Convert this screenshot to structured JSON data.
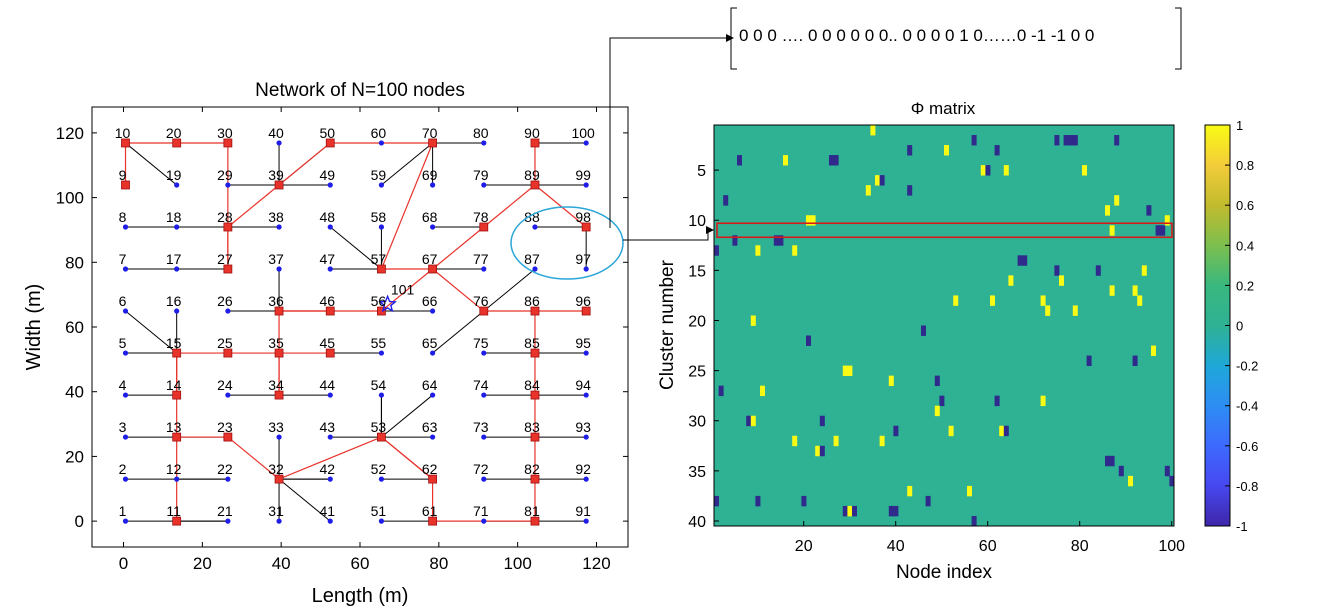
{
  "vector_text": "0 0 0 …. 0 0 0 0 0 0.. 0 0 0 0 1 0……0  -1 -1 0 0",
  "chart_data": [
    {
      "type": "scatter",
      "title": "Network of N=100 nodes",
      "xlabel": "Length (m)",
      "ylabel": "Width (m)",
      "xlim": [
        -8,
        128
      ],
      "ylim": [
        -8,
        128
      ],
      "xticks": [
        0,
        20,
        40,
        60,
        80,
        100,
        120
      ],
      "yticks": [
        0,
        20,
        40,
        60,
        80,
        100,
        120
      ],
      "grid": "none",
      "node_labels": [
        "1",
        "2",
        "3",
        "4",
        "5",
        "6",
        "7",
        "8",
        "9",
        "10",
        "11",
        "12",
        "13",
        "14",
        "15",
        "16",
        "17",
        "18",
        "19",
        "20",
        "21",
        "22",
        "23",
        "24",
        "25",
        "26",
        "27",
        "28",
        "29",
        "30",
        "31",
        "32",
        "33",
        "34",
        "35",
        "36",
        "37",
        "38",
        "39",
        "40",
        "41",
        "42",
        "43",
        "44",
        "45",
        "46",
        "47",
        "48",
        "49",
        "50",
        "51",
        "52",
        "53",
        "54",
        "55",
        "56",
        "57",
        "58",
        "59",
        "60",
        "61",
        "62",
        "63",
        "64",
        "65",
        "66",
        "67",
        "68",
        "69",
        "70",
        "71",
        "72",
        "73",
        "74",
        "75",
        "76",
        "77",
        "78",
        "79",
        "80",
        "81",
        "82",
        "83",
        "84",
        "85",
        "86",
        "87",
        "88",
        "89",
        "90",
        "91",
        "92",
        "93",
        "94",
        "95",
        "96",
        "97",
        "98",
        "99",
        "100"
      ],
      "sink": {
        "label": "101",
        "x": 67,
        "y": 67
      },
      "edges_black": [
        [
          1,
          11
        ],
        [
          11,
          21
        ],
        [
          2,
          12
        ],
        [
          12,
          22
        ],
        [
          3,
          13
        ],
        [
          4,
          14
        ],
        [
          5,
          15
        ],
        [
          6,
          15
        ],
        [
          7,
          27
        ],
        [
          17,
          27
        ],
        [
          8,
          28
        ],
        [
          18,
          28
        ],
        [
          29,
          39
        ],
        [
          9,
          10
        ],
        [
          21,
          11
        ],
        [
          31,
          32
        ],
        [
          32,
          41
        ],
        [
          32,
          42
        ],
        [
          33,
          32
        ],
        [
          43,
          53
        ],
        [
          51,
          61
        ],
        [
          52,
          62
        ],
        [
          53,
          64
        ],
        [
          53,
          54
        ],
        [
          55,
          45
        ],
        [
          65,
          76
        ],
        [
          66,
          56
        ],
        [
          71,
          81
        ],
        [
          72,
          82
        ],
        [
          73,
          83
        ],
        [
          74,
          84
        ],
        [
          75,
          85
        ],
        [
          91,
          81
        ],
        [
          92,
          82
        ],
        [
          93,
          83
        ],
        [
          94,
          84
        ],
        [
          95,
          85
        ],
        [
          86,
          96
        ],
        [
          87,
          76
        ],
        [
          88,
          98
        ],
        [
          97,
          98
        ],
        [
          99,
          89
        ],
        [
          100,
          90
        ],
        [
          24,
          34
        ],
        [
          25,
          35
        ],
        [
          26,
          36
        ],
        [
          37,
          36
        ],
        [
          38,
          28
        ],
        [
          40,
          39
        ],
        [
          44,
          34
        ],
        [
          47,
          57
        ],
        [
          48,
          57
        ],
        [
          49,
          39
        ],
        [
          58,
          57
        ],
        [
          59,
          70
        ],
        [
          60,
          50
        ],
        [
          63,
          53
        ],
        [
          68,
          78
        ],
        [
          69,
          70
        ],
        [
          77,
          67
        ],
        [
          79,
          89
        ],
        [
          80,
          70
        ],
        [
          16,
          15
        ],
        [
          19,
          10
        ],
        [
          20,
          30
        ],
        [
          22,
          12
        ],
        [
          23,
          13
        ],
        [
          42,
          32
        ],
        [
          46,
          56
        ],
        [
          50,
          39
        ],
        [
          54,
          53
        ],
        [
          56,
          66
        ],
        [
          85,
          75
        ]
      ],
      "edges_red": [
        [
          10,
          20
        ],
        [
          20,
          30
        ],
        [
          30,
          27
        ],
        [
          9,
          10
        ],
        [
          27,
          28
        ],
        [
          28,
          39
        ],
        [
          39,
          50
        ],
        [
          50,
          70
        ],
        [
          70,
          57
        ],
        [
          57,
          67
        ],
        [
          67,
          56
        ],
        [
          56,
          46
        ],
        [
          46,
          36
        ],
        [
          36,
          35
        ],
        [
          35,
          34
        ],
        [
          34,
          35
        ],
        [
          35,
          25
        ],
        [
          25,
          15
        ],
        [
          15,
          14
        ],
        [
          15,
          13
        ],
        [
          13,
          11
        ],
        [
          13,
          23
        ],
        [
          23,
          32
        ],
        [
          32,
          53
        ],
        [
          53,
          62
        ],
        [
          62,
          61
        ],
        [
          61,
          81
        ],
        [
          81,
          82
        ],
        [
          82,
          83
        ],
        [
          83,
          84
        ],
        [
          84,
          85
        ],
        [
          85,
          86
        ],
        [
          86,
          76
        ],
        [
          76,
          67
        ],
        [
          67,
          78
        ],
        [
          78,
          89
        ],
        [
          89,
          98
        ],
        [
          86,
          96
        ],
        [
          89,
          90
        ],
        [
          53,
          62
        ],
        [
          35,
          45
        ],
        [
          36,
          46
        ]
      ],
      "red_nodes": [
        9,
        10,
        11,
        13,
        14,
        15,
        20,
        23,
        25,
        27,
        28,
        30,
        32,
        34,
        35,
        36,
        39,
        45,
        46,
        50,
        53,
        56,
        57,
        61,
        62,
        67,
        70,
        76,
        78,
        81,
        82,
        83,
        84,
        85,
        86,
        89,
        90,
        96,
        98
      ]
    },
    {
      "type": "heatmap",
      "title": "Φ matrix",
      "xlabel": "Node index",
      "ylabel": "Cluster number",
      "xlim": [
        1,
        100
      ],
      "ylim": [
        1,
        40
      ],
      "xticks": [
        20,
        40,
        60,
        80,
        100
      ],
      "yticks": [
        5,
        10,
        15,
        20,
        25,
        30,
        35,
        40
      ],
      "colorbar_ticks": [
        "1",
        "0.8",
        "0.6",
        "0.4",
        "0.2",
        "0",
        "-0.2",
        "-0.4",
        "-0.6",
        "-0.8",
        "-1"
      ],
      "background_value": 0,
      "highlight_row": 11,
      "cells": [
        {
          "row": 1,
          "col": 35,
          "v": 1
        },
        {
          "row": 2,
          "col": 57,
          "v": -1
        },
        {
          "row": 2,
          "col": 78,
          "v": -1
        },
        {
          "row": 2,
          "col": 79,
          "v": -1
        },
        {
          "row": 2,
          "col": 77,
          "v": -1
        },
        {
          "row": 2,
          "col": 75,
          "v": -1
        },
        {
          "row": 2,
          "col": 88,
          "v": -1
        },
        {
          "row": 3,
          "col": 43,
          "v": -1
        },
        {
          "row": 3,
          "col": 51,
          "v": 1
        },
        {
          "row": 3,
          "col": 62,
          "v": -1
        },
        {
          "row": 4,
          "col": 6,
          "v": -1
        },
        {
          "row": 4,
          "col": 16,
          "v": 1
        },
        {
          "row": 4,
          "col": 26,
          "v": -1
        },
        {
          "row": 4,
          "col": 27,
          "v": -1
        },
        {
          "row": 5,
          "col": 59,
          "v": 1
        },
        {
          "row": 5,
          "col": 60,
          "v": -1
        },
        {
          "row": 5,
          "col": 64,
          "v": 1
        },
        {
          "row": 5,
          "col": 81,
          "v": 1
        },
        {
          "row": 6,
          "col": 36,
          "v": 1
        },
        {
          "row": 6,
          "col": 37,
          "v": -1
        },
        {
          "row": 7,
          "col": 34,
          "v": 1
        },
        {
          "row": 7,
          "col": 43,
          "v": -1
        },
        {
          "row": 8,
          "col": 3,
          "v": -1
        },
        {
          "row": 8,
          "col": 88,
          "v": 1
        },
        {
          "row": 9,
          "col": 86,
          "v": 1
        },
        {
          "row": 9,
          "col": 95,
          "v": -1
        },
        {
          "row": 10,
          "col": 21,
          "v": 1
        },
        {
          "row": 10,
          "col": 22,
          "v": 1
        },
        {
          "row": 10,
          "col": 99,
          "v": 1
        },
        {
          "row": 11,
          "col": 87,
          "v": 1
        },
        {
          "row": 11,
          "col": 97,
          "v": -1
        },
        {
          "row": 11,
          "col": 98,
          "v": -1
        },
        {
          "row": 12,
          "col": 5,
          "v": -1
        },
        {
          "row": 12,
          "col": 14,
          "v": -1
        },
        {
          "row": 12,
          "col": 15,
          "v": -1
        },
        {
          "row": 13,
          "col": 1,
          "v": -1
        },
        {
          "row": 13,
          "col": 10,
          "v": 1
        },
        {
          "row": 13,
          "col": 18,
          "v": 1
        },
        {
          "row": 14,
          "col": 67,
          "v": -1
        },
        {
          "row": 14,
          "col": 68,
          "v": -1
        },
        {
          "row": 15,
          "col": 75,
          "v": -1
        },
        {
          "row": 15,
          "col": 84,
          "v": -1
        },
        {
          "row": 15,
          "col": 94,
          "v": 1
        },
        {
          "row": 16,
          "col": 76,
          "v": 1
        },
        {
          "row": 16,
          "col": 65,
          "v": 1
        },
        {
          "row": 17,
          "col": 87,
          "v": 1
        },
        {
          "row": 17,
          "col": 92,
          "v": 1
        },
        {
          "row": 18,
          "col": 53,
          "v": 1
        },
        {
          "row": 18,
          "col": 61,
          "v": 1
        },
        {
          "row": 18,
          "col": 72,
          "v": 1
        },
        {
          "row": 18,
          "col": 93,
          "v": 1
        },
        {
          "row": 19,
          "col": 73,
          "v": 1
        },
        {
          "row": 19,
          "col": 79,
          "v": 1
        },
        {
          "row": 20,
          "col": 9,
          "v": 1
        },
        {
          "row": 21,
          "col": 46,
          "v": -1
        },
        {
          "row": 22,
          "col": 21,
          "v": -1
        },
        {
          "row": 23,
          "col": 96,
          "v": 1
        },
        {
          "row": 24,
          "col": 82,
          "v": -1
        },
        {
          "row": 24,
          "col": 92,
          "v": -1
        },
        {
          "row": 25,
          "col": 29,
          "v": 1
        },
        {
          "row": 25,
          "col": 30,
          "v": 1
        },
        {
          "row": 26,
          "col": 39,
          "v": 1
        },
        {
          "row": 26,
          "col": 49,
          "v": -1
        },
        {
          "row": 27,
          "col": 2,
          "v": -1
        },
        {
          "row": 27,
          "col": 11,
          "v": 1
        },
        {
          "row": 28,
          "col": 50,
          "v": -1
        },
        {
          "row": 28,
          "col": 62,
          "v": -1
        },
        {
          "row": 28,
          "col": 72,
          "v": 1
        },
        {
          "row": 29,
          "col": 49,
          "v": 1
        },
        {
          "row": 30,
          "col": 8,
          "v": -1
        },
        {
          "row": 30,
          "col": 9,
          "v": 1
        },
        {
          "row": 30,
          "col": 24,
          "v": -1
        },
        {
          "row": 31,
          "col": 40,
          "v": -1
        },
        {
          "row": 31,
          "col": 52,
          "v": 1
        },
        {
          "row": 31,
          "col": 63,
          "v": 1
        },
        {
          "row": 31,
          "col": 64,
          "v": -1
        },
        {
          "row": 32,
          "col": 18,
          "v": 1
        },
        {
          "row": 32,
          "col": 27,
          "v": 1
        },
        {
          "row": 32,
          "col": 37,
          "v": 1
        },
        {
          "row": 33,
          "col": 23,
          "v": 1
        },
        {
          "row": 33,
          "col": 24,
          "v": -1
        },
        {
          "row": 34,
          "col": 86,
          "v": -1
        },
        {
          "row": 34,
          "col": 87,
          "v": -1
        },
        {
          "row": 35,
          "col": 89,
          "v": -1
        },
        {
          "row": 35,
          "col": 99,
          "v": -1
        },
        {
          "row": 36,
          "col": 91,
          "v": 1
        },
        {
          "row": 36,
          "col": 100,
          "v": -1
        },
        {
          "row": 37,
          "col": 43,
          "v": 1
        },
        {
          "row": 37,
          "col": 56,
          "v": 1
        },
        {
          "row": 38,
          "col": 1,
          "v": -1
        },
        {
          "row": 38,
          "col": 10,
          "v": -1
        },
        {
          "row": 38,
          "col": 20,
          "v": -1
        },
        {
          "row": 38,
          "col": 47,
          "v": -1
        },
        {
          "row": 39,
          "col": 29,
          "v": -1
        },
        {
          "row": 39,
          "col": 30,
          "v": 1
        },
        {
          "row": 39,
          "col": 31,
          "v": -1
        },
        {
          "row": 39,
          "col": 39,
          "v": -1
        },
        {
          "row": 39,
          "col": 40,
          "v": -1
        },
        {
          "row": 40,
          "col": 57,
          "v": -1
        }
      ]
    }
  ],
  "colors": {
    "red": "#e8332b",
    "blue": "#1e1ee8",
    "black": "#000000",
    "ellipse": "#2aa6d8",
    "highlight": "#d81a1a"
  }
}
